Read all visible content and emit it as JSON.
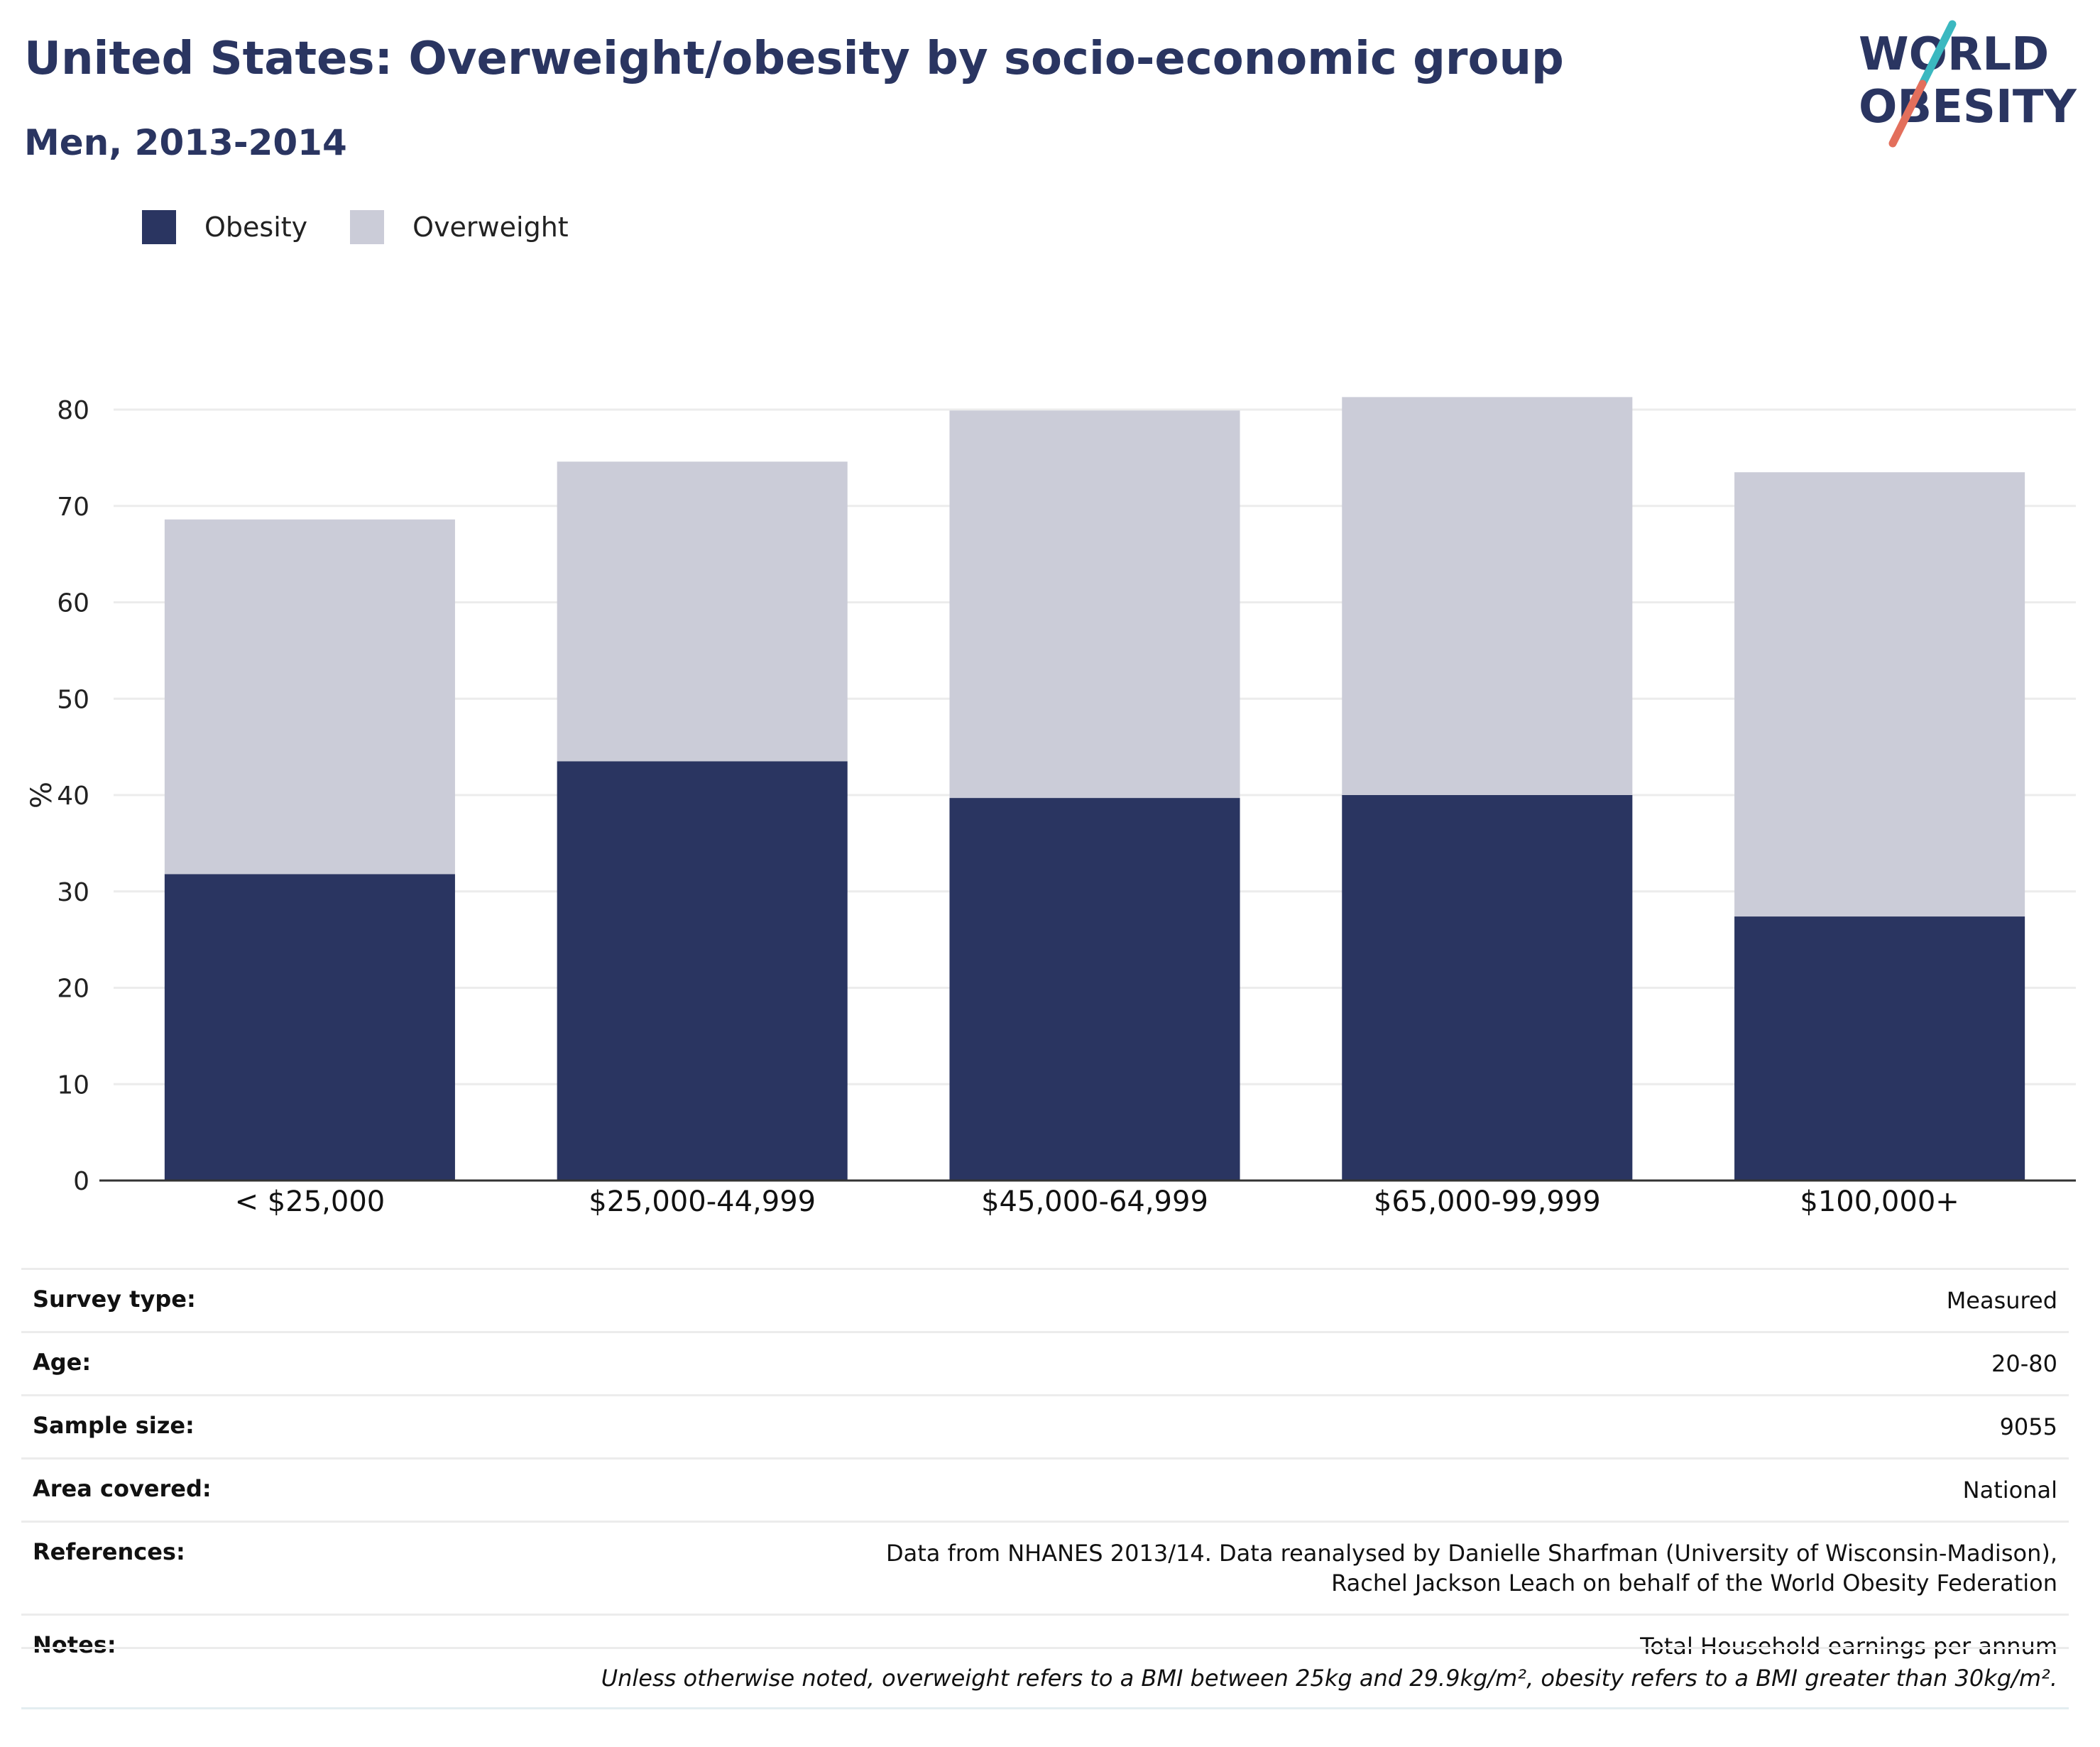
{
  "header": {
    "title": "United States: Overweight/obesity by socio-economic group",
    "subtitle": "Men, 2013-2014"
  },
  "logo": {
    "line1": "WORLD",
    "line2": "OBESITY"
  },
  "colors": {
    "obesity": "#2a3561",
    "overweight": "#cbccd8",
    "grid": "#ececec",
    "axis": "#333333",
    "logo_teal": "#3bb8c0",
    "logo_coral": "#e36f5c"
  },
  "chart_data": {
    "type": "bar",
    "stacked": true,
    "categories": [
      "< $25,000",
      "$25,000-44,999",
      "$45,000-64,999",
      "$65,000-99,999",
      "$100,000+"
    ],
    "series": [
      {
        "name": "Obesity",
        "values": [
          31.8,
          43.5,
          39.7,
          40.0,
          27.4
        ]
      },
      {
        "name": "Overweight",
        "values": [
          36.8,
          31.1,
          40.2,
          41.3,
          46.1
        ]
      }
    ],
    "ylabel": "%",
    "ylim": [
      0,
      80
    ],
    "yticks": [
      0,
      10,
      20,
      30,
      40,
      50,
      60,
      70,
      80
    ],
    "grid": true,
    "legend_position": "top-left"
  },
  "table": {
    "rows": [
      {
        "key": "Survey type:",
        "value": "Measured"
      },
      {
        "key": "Age:",
        "value": "20-80"
      },
      {
        "key": "Sample size:",
        "value": "9055"
      },
      {
        "key": "Area covered:",
        "value": "National"
      },
      {
        "key": "References:",
        "value": "Data from NHANES 2013/14. Data reanalysed by Danielle Sharfman (University of Wisconsin-Madison), Rachel Jackson Leach on behalf of the World Obesity Federation"
      },
      {
        "key": "Notes:",
        "value": "Total Household earnings per annum"
      }
    ],
    "footnote": "Unless otherwise noted, overweight refers to a BMI between 25kg and 29.9kg/m², obesity refers to a BMI greater than 30kg/m²."
  }
}
